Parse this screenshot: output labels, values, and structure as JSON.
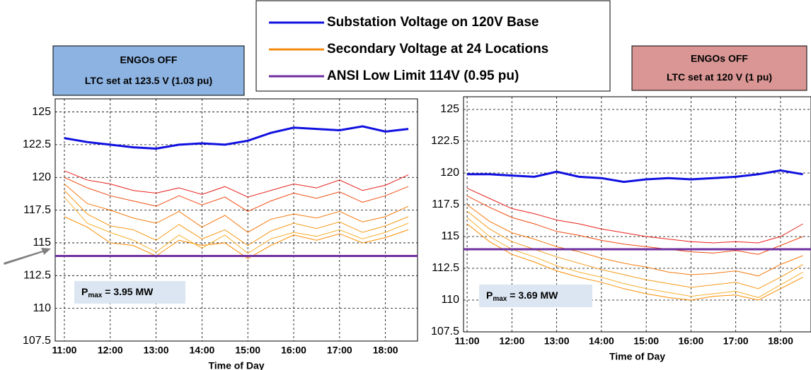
{
  "legend": [
    {
      "label": "Substation Voltage on 120V Base",
      "color": "#1010e0"
    },
    {
      "label": "Secondary Voltage at 24 Locations",
      "color": "#f58a10"
    },
    {
      "label": "ANSI Low Limit 114V (0.95 pu)",
      "color": "#7030a0"
    }
  ],
  "chart_data": [
    {
      "type": "line",
      "box_title": "ENGOs OFF",
      "box_subtitle": "LTC set at 123.5 V (1.03 pu)",
      "box_color": "#8db3e2",
      "annotation": {
        "symbol": "P",
        "subscript": "max",
        "text": " = 3.95 MW"
      },
      "xlabel": "Time of Day",
      "grid": true,
      "xlim": [
        10.8,
        18.7
      ],
      "ylim": [
        107.5,
        126
      ],
      "xticks": [
        {
          "value": 11,
          "label": "11:00"
        },
        {
          "value": 12,
          "label": "12:00"
        },
        {
          "value": 13,
          "label": "13:00"
        },
        {
          "value": 14,
          "label": "14:00"
        },
        {
          "value": 15,
          "label": "15:00"
        },
        {
          "value": 16,
          "label": "16:00"
        },
        {
          "value": 17,
          "label": "17:00"
        },
        {
          "value": 18,
          "label": "18:00"
        }
      ],
      "yticks": [
        107.5,
        110,
        112.5,
        115,
        117.5,
        120,
        122.5,
        125
      ],
      "limit": {
        "value": 114,
        "color": "#7030a0"
      },
      "x": [
        11,
        11.5,
        12,
        12.5,
        13,
        13.5,
        14,
        14.5,
        15,
        15.5,
        16,
        16.5,
        17,
        17.5,
        18,
        18.5
      ],
      "series": [
        {
          "color": "#1010e0",
          "width": 3,
          "values": [
            123.0,
            122.7,
            122.5,
            122.3,
            122.2,
            122.5,
            122.6,
            122.5,
            122.8,
            123.4,
            123.8,
            123.7,
            123.6,
            123.9,
            123.5,
            123.7
          ]
        },
        {
          "color": "#e8201a",
          "width": 1,
          "values": [
            120.5,
            119.8,
            119.5,
            119.0,
            118.8,
            119.2,
            118.7,
            119.3,
            118.5,
            119.0,
            119.5,
            119.2,
            119.8,
            119.0,
            119.4,
            120.2
          ]
        },
        {
          "color": "#f04a10",
          "width": 1,
          "values": [
            120.0,
            119.2,
            118.6,
            118.2,
            117.8,
            118.6,
            117.9,
            118.5,
            117.4,
            118.2,
            118.8,
            118.4,
            118.9,
            118.1,
            118.6,
            119.3
          ]
        },
        {
          "color": "#f57a10",
          "width": 1,
          "values": [
            119.5,
            118.0,
            117.5,
            116.9,
            116.5,
            117.4,
            116.2,
            117.1,
            115.8,
            116.8,
            117.2,
            116.9,
            117.4,
            116.6,
            117.0,
            117.8
          ]
        },
        {
          "color": "#f59a18",
          "width": 1,
          "values": [
            119.0,
            117.2,
            116.3,
            116.0,
            115.2,
            116.4,
            115.3,
            116.0,
            114.8,
            115.9,
            116.5,
            116.1,
            116.6,
            115.8,
            116.3,
            117.0
          ]
        },
        {
          "color": "#f8b030",
          "width": 1,
          "values": [
            118.5,
            116.5,
            115.8,
            115.2,
            114.3,
            115.6,
            114.6,
            115.6,
            114.2,
            115.3,
            115.8,
            115.5,
            116.0,
            115.3,
            115.8,
            116.5
          ]
        },
        {
          "color": "#fa8c00",
          "width": 1,
          "values": [
            117.0,
            116.2,
            115.0,
            114.8,
            114.0,
            115.2,
            114.8,
            115.0,
            113.8,
            114.8,
            115.6,
            115.2,
            115.7,
            115.0,
            115.4,
            116.0
          ]
        }
      ]
    },
    {
      "type": "line",
      "box_title": "ENGOs OFF",
      "box_subtitle": "LTC set at 120 V (1 pu)",
      "box_color": "#d99694",
      "annotation": {
        "symbol": "P",
        "subscript": "max",
        "text": " = 3.69 MW"
      },
      "xlabel": "Time of Day",
      "grid": true,
      "xlim": [
        10.92,
        18.68
      ],
      "ylim": [
        107.5,
        126
      ],
      "xticks": [
        {
          "value": 11,
          "label": "11:00"
        },
        {
          "value": 12,
          "label": "12:00"
        },
        {
          "value": 13,
          "label": "13:00"
        },
        {
          "value": 14,
          "label": "14:00"
        },
        {
          "value": 15,
          "label": "15:00"
        },
        {
          "value": 16,
          "label": "16:00"
        },
        {
          "value": 17,
          "label": "17:00"
        },
        {
          "value": 18,
          "label": "18:00"
        }
      ],
      "yticks": [
        107.5,
        110,
        112.5,
        115,
        117.5,
        120,
        122.5,
        125
      ],
      "limit": {
        "value": 114,
        "color": "#7030a0"
      },
      "x": [
        11,
        11.5,
        12,
        12.5,
        13,
        13.5,
        14,
        14.5,
        15,
        15.5,
        16,
        16.5,
        17,
        17.5,
        18,
        18.5
      ],
      "series": [
        {
          "color": "#1010e0",
          "width": 3,
          "values": [
            119.9,
            119.9,
            119.8,
            119.7,
            120.1,
            119.7,
            119.6,
            119.3,
            119.5,
            119.6,
            119.5,
            119.6,
            119.7,
            119.9,
            120.2,
            119.9
          ]
        },
        {
          "color": "#e8201a",
          "width": 1,
          "values": [
            118.8,
            118.0,
            117.2,
            116.8,
            116.3,
            116.0,
            115.6,
            115.3,
            115.0,
            114.8,
            114.6,
            114.5,
            114.6,
            114.5,
            115.0,
            116.0
          ]
        },
        {
          "color": "#f04a10",
          "width": 1,
          "values": [
            118.2,
            117.3,
            116.5,
            116.0,
            115.4,
            115.1,
            114.7,
            114.4,
            114.2,
            114.0,
            113.8,
            113.7,
            113.9,
            113.6,
            114.3,
            115.0
          ]
        },
        {
          "color": "#f57a10",
          "width": 1,
          "values": [
            117.5,
            116.2,
            115.3,
            114.8,
            114.2,
            113.8,
            113.3,
            112.9,
            112.6,
            112.2,
            112.0,
            112.1,
            112.3,
            111.9,
            112.8,
            113.5
          ]
        },
        {
          "color": "#f59a18",
          "width": 1,
          "values": [
            117.0,
            115.6,
            114.6,
            114.0,
            113.4,
            112.9,
            112.4,
            112.0,
            111.6,
            111.3,
            111.0,
            111.2,
            111.4,
            110.9,
            111.8,
            112.8
          ]
        },
        {
          "color": "#f8b030",
          "width": 1,
          "values": [
            116.5,
            115.0,
            114.0,
            113.4,
            112.7,
            112.2,
            111.8,
            111.3,
            110.9,
            110.6,
            110.3,
            110.5,
            110.7,
            110.2,
            111.2,
            112.2
          ]
        },
        {
          "color": "#fa8c00",
          "width": 1,
          "values": [
            116.0,
            114.6,
            113.6,
            113.0,
            112.3,
            111.8,
            111.4,
            110.9,
            110.5,
            110.2,
            110.0,
            110.3,
            110.4,
            110.0,
            110.9,
            111.8
          ]
        }
      ]
    }
  ]
}
